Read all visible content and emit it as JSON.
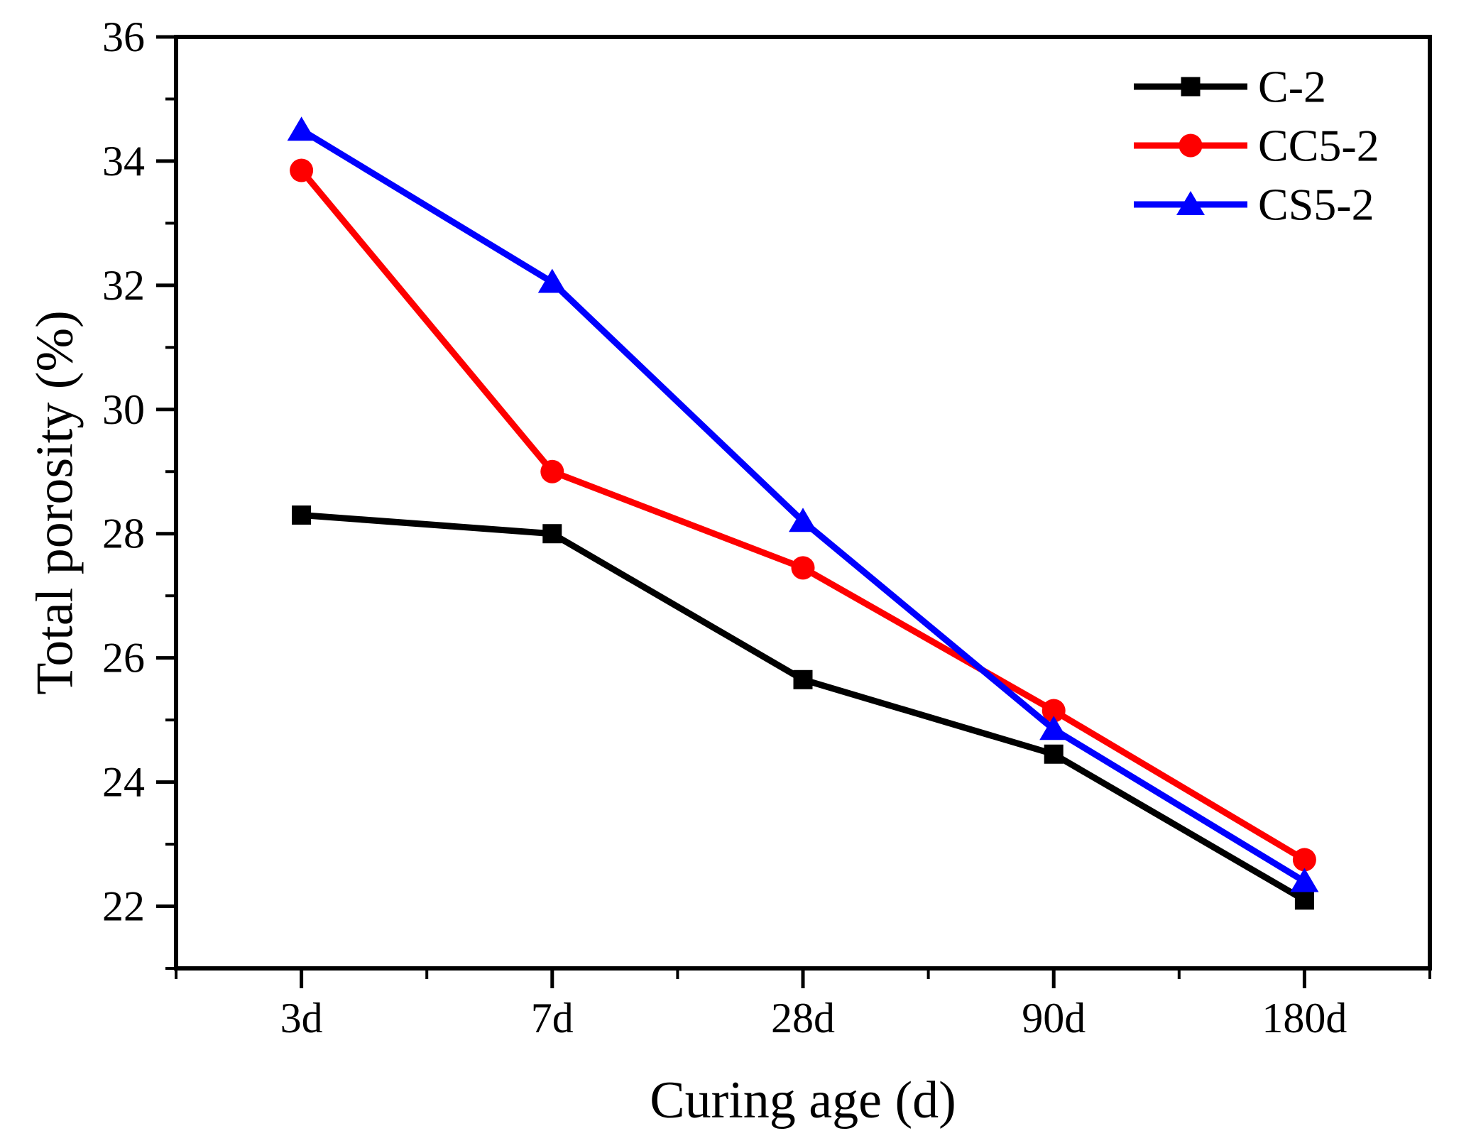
{
  "chart_data": {
    "type": "line",
    "title": "",
    "xlabel": "Curing age (d)",
    "ylabel": "Total porosity (%)",
    "categories": [
      "3d",
      "7d",
      "28d",
      "90d",
      "180d"
    ],
    "series": [
      {
        "name": "C-2",
        "marker": "square",
        "color": "#000000",
        "values": [
          28.3,
          28.0,
          25.65,
          24.45,
          22.1
        ]
      },
      {
        "name": "CC5-2",
        "marker": "circle",
        "color": "#fe0000",
        "values": [
          33.85,
          29.0,
          27.45,
          25.15,
          22.75
        ]
      },
      {
        "name": "CS5-2",
        "marker": "triangle",
        "color": "#0000fe",
        "values": [
          34.5,
          32.05,
          28.2,
          24.85,
          22.4
        ]
      }
    ],
    "ylim": [
      21,
      36
    ],
    "yticks_major": [
      36,
      34,
      32,
      30,
      28,
      26,
      24,
      22
    ],
    "yticks_minor": [
      35,
      33,
      31,
      29,
      27,
      25,
      23,
      21
    ],
    "grid": false,
    "legend_position": "top-right",
    "frame_color": "#000000",
    "background_color": "#ffffff"
  }
}
